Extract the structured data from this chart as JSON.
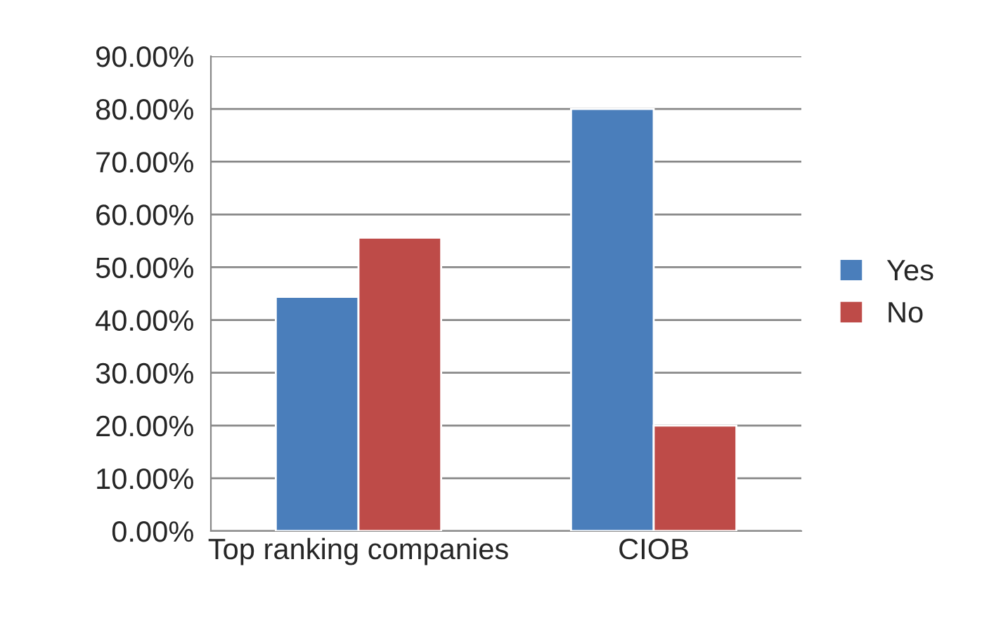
{
  "chart_data": {
    "type": "bar",
    "categories": [
      "Top ranking companies",
      "CIOB"
    ],
    "series": [
      {
        "name": "Yes",
        "color": "#4a7ebb",
        "values": [
          44.4,
          80
        ]
      },
      {
        "name": "No",
        "color": "#be4b48",
        "values": [
          55.6,
          20
        ]
      }
    ],
    "ylim": [
      0,
      90
    ],
    "yticks": [
      {
        "value": 0,
        "label": "0.00%"
      },
      {
        "value": 10,
        "label": "10.00%"
      },
      {
        "value": 20,
        "label": "20.00%"
      },
      {
        "value": 30,
        "label": "30.00%"
      },
      {
        "value": 40,
        "label": "40.00%"
      },
      {
        "value": 50,
        "label": "50.00%"
      },
      {
        "value": 60,
        "label": "60.00%"
      },
      {
        "value": 70,
        "label": "70.00%"
      },
      {
        "value": 80,
        "label": "80.00%"
      },
      {
        "value": 90,
        "label": "90.00%"
      }
    ],
    "grid": "y",
    "legend": "right"
  }
}
